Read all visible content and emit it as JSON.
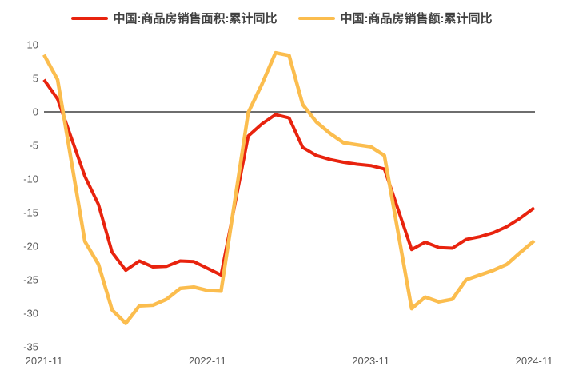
{
  "legend": {
    "position": "top"
  },
  "colors": {
    "series_area": "#e8230e",
    "series_amount": "#fbbd4e",
    "zero_line": "#3f3f3f",
    "tick_text": "#595959",
    "background": "#ffffff"
  },
  "chart_data": {
    "type": "line",
    "title": "",
    "xlabel": "",
    "ylabel": "",
    "grid": false,
    "legend_position": "top",
    "ylim": [
      -35,
      10
    ],
    "y_ticks": [
      10,
      5,
      0,
      -5,
      -10,
      -15,
      -20,
      -25,
      -30,
      -35
    ],
    "x_tick_labels": [
      "2021-11",
      "2022-11",
      "2023-11",
      "2024-11"
    ],
    "x_range_months": [
      "2021-11",
      "2024-11"
    ],
    "zero_line": true,
    "series": [
      {
        "name": "中国:商品房销售面积:累计同比",
        "color": "#e8230e",
        "stroke_width": 4,
        "points": [
          [
            "2021-11",
            4.8
          ],
          [
            "2021-12",
            1.9
          ],
          [
            "2022-02",
            -9.6
          ],
          [
            "2022-03",
            -13.8
          ],
          [
            "2022-04",
            -20.9
          ],
          [
            "2022-05",
            -23.6
          ],
          [
            "2022-06",
            -22.2
          ],
          [
            "2022-07",
            -23.1
          ],
          [
            "2022-08",
            -23.0
          ],
          [
            "2022-09",
            -22.2
          ],
          [
            "2022-10",
            -22.3
          ],
          [
            "2022-11",
            -23.3
          ],
          [
            "2022-12",
            -24.3
          ],
          [
            "2023-02",
            -3.6
          ],
          [
            "2023-03",
            -1.8
          ],
          [
            "2023-04",
            -0.4
          ],
          [
            "2023-05",
            -0.9
          ],
          [
            "2023-06",
            -5.3
          ],
          [
            "2023-07",
            -6.5
          ],
          [
            "2023-08",
            -7.1
          ],
          [
            "2023-09",
            -7.5
          ],
          [
            "2023-10",
            -7.8
          ],
          [
            "2023-11",
            -8.0
          ],
          [
            "2023-12",
            -8.5
          ],
          [
            "2024-02",
            -20.5
          ],
          [
            "2024-03",
            -19.4
          ],
          [
            "2024-04",
            -20.2
          ],
          [
            "2024-05",
            -20.3
          ],
          [
            "2024-06",
            -19.0
          ],
          [
            "2024-07",
            -18.6
          ],
          [
            "2024-08",
            -18.0
          ],
          [
            "2024-09",
            -17.1
          ],
          [
            "2024-10",
            -15.8
          ],
          [
            "2024-11",
            -14.3
          ]
        ]
      },
      {
        "name": "中国:商品房销售额:累计同比",
        "color": "#fbbd4e",
        "stroke_width": 4.5,
        "points": [
          [
            "2021-11",
            8.5
          ],
          [
            "2021-12",
            4.8
          ],
          [
            "2022-02",
            -19.3
          ],
          [
            "2022-03",
            -22.7
          ],
          [
            "2022-04",
            -29.5
          ],
          [
            "2022-05",
            -31.5
          ],
          [
            "2022-06",
            -28.9
          ],
          [
            "2022-07",
            -28.8
          ],
          [
            "2022-08",
            -27.9
          ],
          [
            "2022-09",
            -26.3
          ],
          [
            "2022-10",
            -26.1
          ],
          [
            "2022-11",
            -26.6
          ],
          [
            "2022-12",
            -26.7
          ],
          [
            "2023-02",
            -0.1
          ],
          [
            "2023-03",
            4.1
          ],
          [
            "2023-04",
            8.8
          ],
          [
            "2023-05",
            8.4
          ],
          [
            "2023-06",
            1.1
          ],
          [
            "2023-07",
            -1.5
          ],
          [
            "2023-08",
            -3.2
          ],
          [
            "2023-09",
            -4.6
          ],
          [
            "2023-10",
            -4.9
          ],
          [
            "2023-11",
            -5.2
          ],
          [
            "2023-12",
            -6.5
          ],
          [
            "2024-02",
            -29.3
          ],
          [
            "2024-03",
            -27.6
          ],
          [
            "2024-04",
            -28.3
          ],
          [
            "2024-05",
            -27.9
          ],
          [
            "2024-06",
            -25.0
          ],
          [
            "2024-07",
            -24.3
          ],
          [
            "2024-08",
            -23.6
          ],
          [
            "2024-09",
            -22.7
          ],
          [
            "2024-10",
            -20.9
          ],
          [
            "2024-11",
            -19.2
          ]
        ]
      }
    ]
  }
}
